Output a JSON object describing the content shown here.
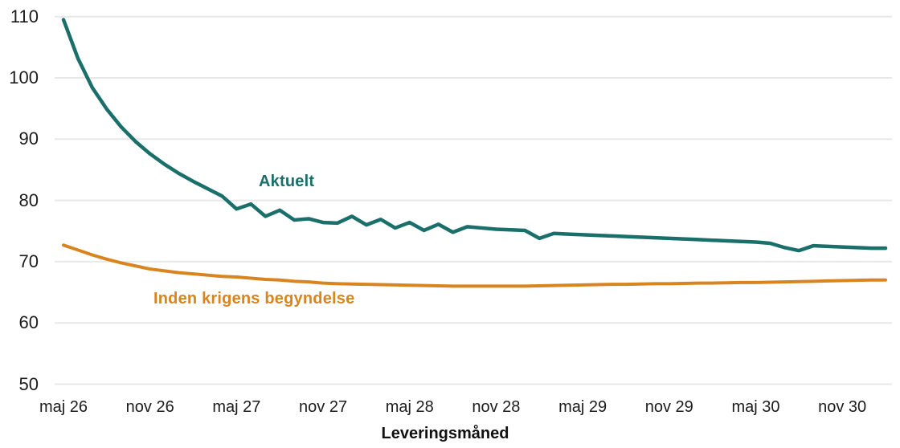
{
  "page": {
    "background": "#ffffff",
    "grid_color": "#e8e8e8",
    "text_color": "#1c1c1c"
  },
  "chart_data": {
    "type": "line",
    "title": "",
    "xlabel": "Leveringsmåned",
    "ylabel": "",
    "ylim": [
      50,
      110
    ],
    "y_ticks": [
      50,
      60,
      70,
      80,
      90,
      100,
      110
    ],
    "grid": "horizontal",
    "legend_position": "inline-labels",
    "x_tick_labels": [
      "maj 26",
      "nov 26",
      "maj 27",
      "nov 27",
      "maj 28",
      "nov 28",
      "maj 29",
      "nov 29",
      "maj 30",
      "nov 30"
    ],
    "x_tick_indices": [
      0,
      6,
      12,
      18,
      24,
      30,
      36,
      42,
      48,
      54
    ],
    "x_months": [
      "2026-05",
      "2026-06",
      "2026-07",
      "2026-08",
      "2026-09",
      "2026-10",
      "2026-11",
      "2026-12",
      "2027-01",
      "2027-02",
      "2027-03",
      "2027-04",
      "2027-05",
      "2027-06",
      "2027-07",
      "2027-08",
      "2027-09",
      "2027-10",
      "2027-11",
      "2027-12",
      "2028-01",
      "2028-02",
      "2028-03",
      "2028-04",
      "2028-05",
      "2028-06",
      "2028-07",
      "2028-08",
      "2028-09",
      "2028-10",
      "2028-11",
      "2028-12",
      "2029-01",
      "2029-02",
      "2029-03",
      "2029-04",
      "2029-05",
      "2029-06",
      "2029-07",
      "2029-08",
      "2029-09",
      "2029-10",
      "2029-11",
      "2029-12",
      "2030-01",
      "2030-02",
      "2030-03",
      "2030-04",
      "2030-05",
      "2030-06",
      "2030-07",
      "2030-08",
      "2030-09",
      "2030-10",
      "2030-11",
      "2030-12",
      "2031-01",
      "2031-02"
    ],
    "series": [
      {
        "name": "Aktuelt",
        "color": "#1b6f6a",
        "stroke_width": 4.5,
        "values": [
          109.5,
          103.2,
          98.4,
          94.9,
          92.0,
          89.6,
          87.6,
          85.9,
          84.4,
          83.1,
          81.9,
          80.7,
          78.6,
          79.4,
          77.4,
          78.4,
          76.8,
          77.0,
          76.4,
          76.3,
          77.4,
          76.0,
          76.9,
          75.5,
          76.4,
          75.1,
          76.1,
          74.8,
          75.7,
          75.5,
          75.3,
          75.2,
          75.1,
          73.8,
          74.6,
          74.5,
          74.4,
          74.3,
          74.2,
          74.1,
          74.0,
          73.9,
          73.8,
          73.7,
          73.6,
          73.5,
          73.4,
          73.3,
          73.2,
          73.0,
          72.3,
          71.8,
          72.6,
          72.5,
          72.4,
          72.3,
          72.2,
          72.2
        ]
      },
      {
        "name": "Inden krigens begyndelse",
        "color": "#d9851f",
        "stroke_width": 4,
        "values": [
          72.7,
          71.9,
          71.1,
          70.4,
          69.8,
          69.3,
          68.8,
          68.5,
          68.2,
          68.0,
          67.8,
          67.6,
          67.5,
          67.3,
          67.1,
          67.0,
          66.8,
          66.7,
          66.5,
          66.4,
          66.35,
          66.3,
          66.25,
          66.2,
          66.15,
          66.1,
          66.05,
          66.0,
          66.0,
          66.0,
          66.0,
          66.0,
          66.0,
          66.05,
          66.1,
          66.15,
          66.2,
          66.25,
          66.3,
          66.3,
          66.35,
          66.4,
          66.4,
          66.45,
          66.5,
          66.5,
          66.55,
          66.6,
          66.6,
          66.65,
          66.7,
          66.75,
          66.8,
          66.85,
          66.9,
          66.95,
          67.0,
          67.0
        ]
      }
    ]
  }
}
